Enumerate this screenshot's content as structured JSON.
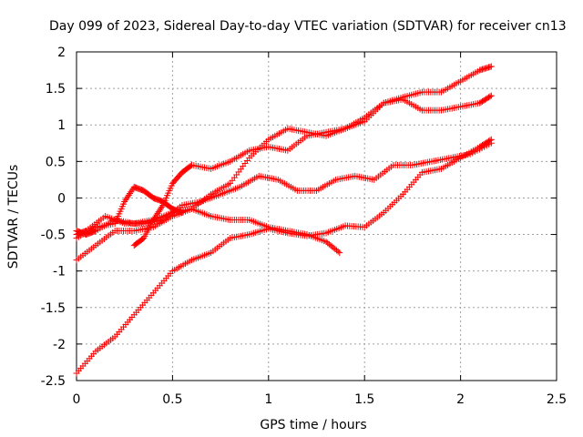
{
  "chart_data": {
    "type": "scatter",
    "title": "Day 099 of 2023, Sidereal Day-to-day VTEC variation (SDTVAR) for receiver cn13",
    "xlabel": "GPS time / hours",
    "ylabel": "SDTVAR / TECUs",
    "xlim": [
      0,
      2.5
    ],
    "ylim": [
      -2.5,
      2
    ],
    "grid": true,
    "legend": "none",
    "marker": "plus",
    "color": "#ff0000",
    "x_ticks": [
      "0",
      "0.5",
      "1",
      "1.5",
      "2",
      "2.5"
    ],
    "y_ticks": [
      "-2.5",
      "-2",
      "-1.5",
      "-1",
      "-0.5",
      "0",
      "0.5",
      "1",
      "1.5",
      "2"
    ],
    "series": [
      {
        "x": [
          0,
          0.1,
          0.2,
          0.3,
          0.4,
          0.5,
          0.6,
          0.7,
          0.8,
          0.9,
          1.0,
          1.1,
          1.2,
          1.3,
          1.4,
          1.5,
          1.6,
          1.7,
          1.8,
          1.9,
          2.0,
          2.1,
          2.16
        ],
        "y": [
          -2.4,
          -2.1,
          -1.9,
          -1.6,
          -1.3,
          -1.0,
          -0.85,
          -0.75,
          -0.55,
          -0.5,
          -0.42,
          -0.48,
          -0.52,
          -0.48,
          -0.38,
          -0.4,
          -0.2,
          0.05,
          0.35,
          0.4,
          0.55,
          0.7,
          0.8
        ]
      },
      {
        "x": [
          0,
          0.1,
          0.2,
          0.3,
          0.4,
          0.5,
          0.6,
          0.7,
          0.8,
          0.9,
          1.0,
          1.1,
          1.2,
          1.3,
          1.4,
          1.5,
          1.6,
          1.7,
          1.8,
          1.9,
          2.0,
          2.1,
          2.16
        ],
        "y": [
          -0.85,
          -0.65,
          -0.45,
          -0.45,
          -0.4,
          -0.25,
          -0.15,
          0.05,
          0.2,
          0.55,
          0.8,
          0.95,
          0.9,
          0.85,
          0.95,
          1.1,
          1.3,
          1.38,
          1.45,
          1.45,
          1.6,
          1.75,
          1.8
        ]
      },
      {
        "x": [
          0,
          0.05,
          0.15,
          0.25,
          0.35,
          0.45,
          0.55,
          0.65,
          0.75,
          0.85,
          0.95,
          1.05,
          1.15,
          1.25,
          1.35,
          1.45,
          1.55,
          1.65,
          1.75,
          1.85,
          1.95,
          2.05,
          2.16
        ],
        "y": [
          -0.5,
          -0.45,
          -0.25,
          -0.35,
          -0.35,
          -0.3,
          -0.1,
          -0.05,
          0.05,
          0.15,
          0.3,
          0.25,
          0.1,
          0.1,
          0.25,
          0.3,
          0.25,
          0.45,
          0.45,
          0.5,
          0.55,
          0.6,
          0.75
        ]
      },
      {
        "x": [
          0.3,
          0.35,
          0.4,
          0.45,
          0.5,
          0.55,
          0.6,
          0.7,
          0.8,
          0.9,
          1.0,
          1.1,
          1.2,
          1.3,
          1.4,
          1.5,
          1.6,
          1.7,
          1.8,
          1.9,
          2.0,
          2.1,
          2.16
        ],
        "y": [
          -0.65,
          -0.55,
          -0.3,
          -0.1,
          0.2,
          0.35,
          0.45,
          0.4,
          0.5,
          0.65,
          0.7,
          0.65,
          0.85,
          0.9,
          0.95,
          1.05,
          1.3,
          1.35,
          1.2,
          1.2,
          1.25,
          1.3,
          1.4
        ]
      },
      {
        "x": [
          0,
          0.05,
          0.1,
          0.2,
          0.3,
          0.4,
          0.5,
          0.6,
          0.7,
          0.8,
          0.9,
          1.0,
          1.1,
          1.2,
          1.3,
          1.37
        ],
        "y": [
          -0.45,
          -0.5,
          -0.45,
          -0.3,
          -0.35,
          -0.3,
          -0.2,
          -0.15,
          -0.25,
          -0.3,
          -0.3,
          -0.4,
          -0.45,
          -0.5,
          -0.6,
          -0.75
        ]
      },
      {
        "x": [
          0,
          0.1,
          0.2,
          0.25,
          0.3,
          0.35,
          0.4,
          0.45,
          0.5,
          0.55
        ],
        "y": [
          -0.55,
          -0.4,
          -0.35,
          -0.05,
          0.15,
          0.1,
          0.0,
          -0.05,
          -0.15,
          -0.2
        ]
      }
    ]
  }
}
